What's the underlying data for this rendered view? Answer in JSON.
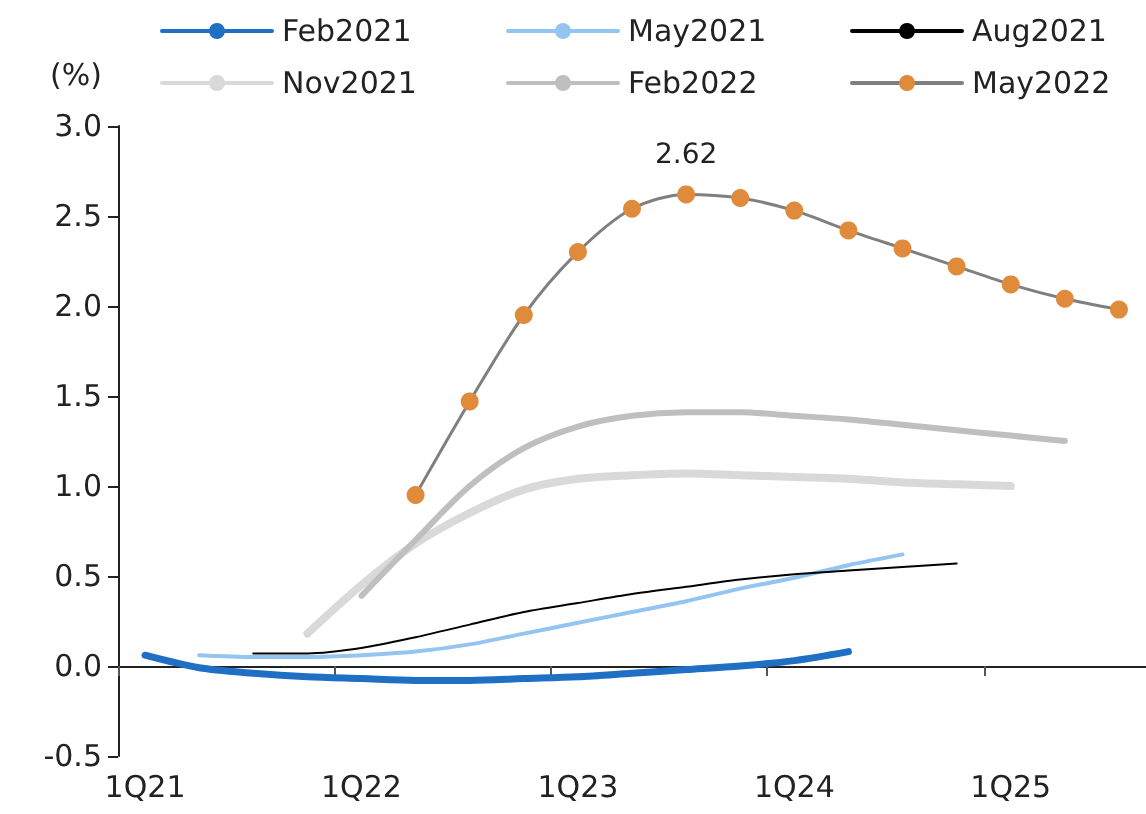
{
  "chart_data": {
    "type": "line",
    "ylabel": "(%)",
    "categories": [
      "1Q21",
      null,
      null,
      null,
      "1Q22",
      null,
      null,
      null,
      "1Q23",
      null,
      null,
      null,
      "1Q24",
      null,
      null,
      null,
      "1Q25",
      null,
      null
    ],
    "ylim": [
      -0.5,
      3.0
    ],
    "yticks": [
      -0.5,
      {
        "value": 0,
        "label": "0.0"
      },
      0.5,
      {
        "value": 1,
        "label": "1.0"
      },
      1.5,
      {
        "value": 2,
        "label": "2.0"
      },
      2.5,
      {
        "value": 3,
        "label": "3.0"
      }
    ],
    "legend": "top",
    "marker": "none",
    "series": [
      {
        "name": "Feb2021",
        "color": "#1f6fc5",
        "values": [
          0.06,
          -0.01,
          -0.04,
          -0.06,
          -0.07,
          -0.08,
          -0.08,
          -0.07,
          -0.06,
          -0.04,
          -0.02,
          0.0,
          0.03,
          0.08,
          null,
          null,
          null,
          null,
          null
        ]
      },
      {
        "name": "May2021",
        "color": "#94c5f0",
        "values": [
          null,
          0.06,
          0.05,
          0.05,
          0.06,
          0.08,
          0.12,
          0.18,
          0.24,
          0.3,
          0.36,
          0.43,
          0.49,
          0.56,
          0.62,
          null,
          null,
          null,
          null
        ]
      },
      {
        "name": "Aug2021",
        "color": "#000000",
        "values": [
          null,
          null,
          0.07,
          0.07,
          0.1,
          0.16,
          0.23,
          0.3,
          0.35,
          0.4,
          0.44,
          0.48,
          0.51,
          0.53,
          0.55,
          0.57,
          null,
          null,
          null
        ]
      },
      {
        "name": "Nov2021",
        "color": "#d9d9d9",
        "values": [
          null,
          null,
          null,
          0.18,
          0.45,
          0.68,
          0.85,
          0.98,
          1.04,
          1.06,
          1.07,
          1.06,
          1.05,
          1.04,
          1.02,
          1.01,
          1.0,
          null,
          null
        ]
      },
      {
        "name": "Feb2022",
        "color": "#bfbfbf",
        "values": [
          null,
          null,
          null,
          null,
          0.39,
          0.7,
          1.0,
          1.21,
          1.33,
          1.39,
          1.41,
          1.41,
          1.39,
          1.37,
          1.34,
          1.31,
          1.28,
          1.25,
          null
        ]
      },
      {
        "name": "May2022",
        "color": "#e08a3c",
        "marker": "circle",
        "values": [
          null,
          null,
          null,
          null,
          null,
          0.95,
          1.47,
          1.95,
          2.3,
          2.54,
          2.62,
          2.6,
          2.53,
          2.42,
          2.32,
          2.22,
          2.12,
          2.04,
          1.98
        ],
        "value_labels": [
          null,
          null,
          null,
          null,
          null,
          null,
          null,
          null,
          null,
          null,
          "2.62",
          null,
          null,
          null,
          null,
          null,
          null,
          null,
          null
        ]
      }
    ]
  }
}
